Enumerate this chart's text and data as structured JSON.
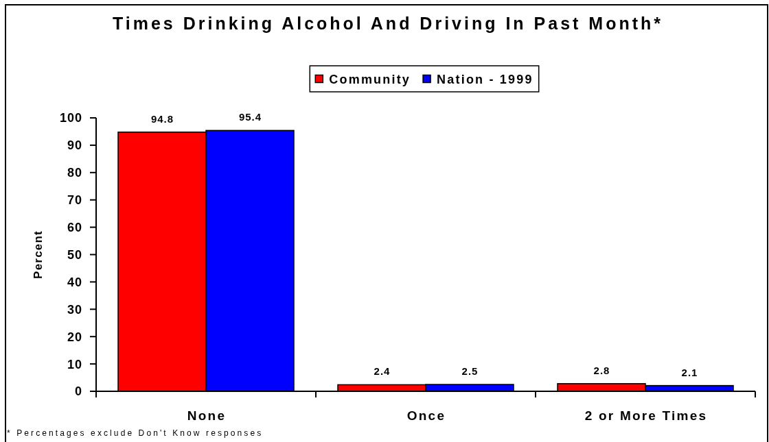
{
  "chart_data": {
    "type": "bar",
    "title": "Times Drinking Alcohol And Driving In Past Month*",
    "categories": [
      "None",
      "Once",
      "2 or More Times"
    ],
    "series": [
      {
        "name": "Community",
        "color": "#ff0000",
        "values": [
          94.8,
          2.4,
          2.8
        ]
      },
      {
        "name": "Nation - 1999",
        "color": "#0000ff",
        "values": [
          95.4,
          2.5,
          2.1
        ]
      }
    ],
    "ylabel": "Percent",
    "ylim": [
      0,
      100
    ],
    "yticks": [
      0,
      10,
      20,
      30,
      40,
      50,
      60,
      70,
      80,
      90,
      100
    ],
    "data_labels": true,
    "legend": "top",
    "grid": false,
    "annotations": [
      "* Percentages exclude Don't Know responses"
    ]
  }
}
